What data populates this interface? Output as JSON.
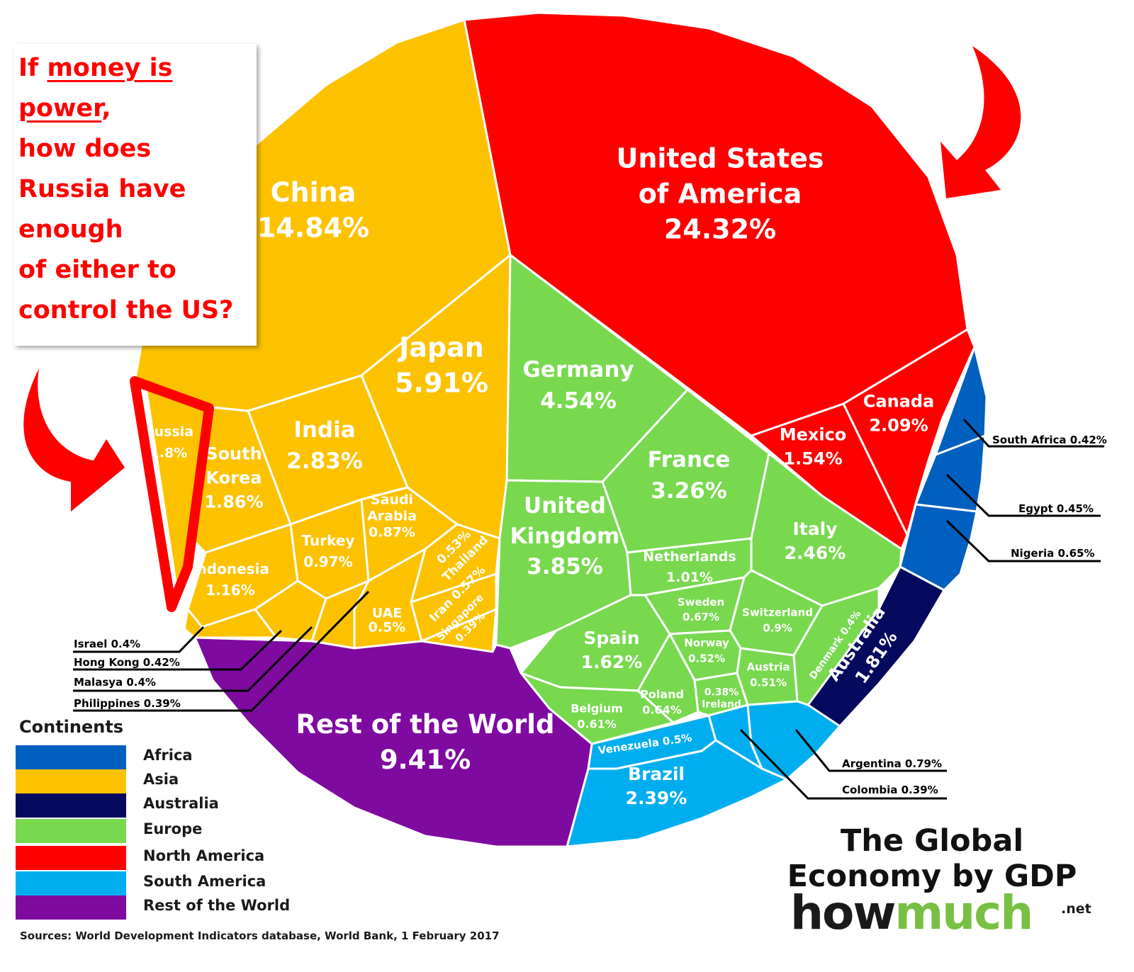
{
  "colors": {
    "Africa": "#0060bf",
    "Asia": "#fcc200",
    "Australia": "#050a5e",
    "Europe": "#78d94f",
    "North America": "#ff0000",
    "South America": "#00aeef",
    "Rest of the World": "#7e0aa0",
    "annotation_red": "#ff0000"
  },
  "quote": {
    "line1_prefix": "If ",
    "line1_underlined": "money is",
    "line2_underlined": "power",
    "line2_suffix": ",",
    "line3": "how does",
    "line4": "Russia have",
    "line5": "enough",
    "line6": "of either to",
    "line7": "control the US?"
  },
  "legend": {
    "title": "Continents",
    "items": [
      {
        "label": "Africa",
        "color": "#0060bf"
      },
      {
        "label": "Asia",
        "color": "#fcc200"
      },
      {
        "label": "Australia",
        "color": "#050a5e"
      },
      {
        "label": "Europe",
        "color": "#78d94f"
      },
      {
        "label": "North America",
        "color": "#ff0000"
      },
      {
        "label": "South America",
        "color": "#00aeef"
      },
      {
        "label": "Rest of the World",
        "color": "#7e0aa0"
      }
    ]
  },
  "sources": "Sources: World Development Indicators database, World Bank, 1 February 2017",
  "title": {
    "line1": "The Global",
    "line2": "Economy by GDP"
  },
  "brand": {
    "how": "how",
    "much": "much",
    "net": ".net"
  },
  "chart_data": {
    "type": "voronoi treemap",
    "title": "The Global Economy by GDP",
    "unit": "% of world GDP",
    "series": [
      {
        "name": "United States of America",
        "continent": "North America",
        "value": 24.32
      },
      {
        "name": "China",
        "continent": "Asia",
        "value": 14.84
      },
      {
        "name": "Rest of the World",
        "continent": "Rest of the World",
        "value": 9.41
      },
      {
        "name": "Japan",
        "continent": "Asia",
        "value": 5.91
      },
      {
        "name": "Germany",
        "continent": "Europe",
        "value": 4.54
      },
      {
        "name": "United Kingdom",
        "continent": "Europe",
        "value": 3.85
      },
      {
        "name": "France",
        "continent": "Europe",
        "value": 3.26
      },
      {
        "name": "India",
        "continent": "Asia",
        "value": 2.83
      },
      {
        "name": "Italy",
        "continent": "Europe",
        "value": 2.46
      },
      {
        "name": "Brazil",
        "continent": "South America",
        "value": 2.39
      },
      {
        "name": "Canada",
        "continent": "North America",
        "value": 2.09
      },
      {
        "name": "South Korea",
        "continent": "Asia",
        "value": 1.86
      },
      {
        "name": "Australia",
        "continent": "Australia",
        "value": 1.81
      },
      {
        "name": "Russia",
        "continent": "Asia",
        "value": 1.8
      },
      {
        "name": "Spain",
        "continent": "Europe",
        "value": 1.62
      },
      {
        "name": "Mexico",
        "continent": "North America",
        "value": 1.54
      },
      {
        "name": "Indonesia",
        "continent": "Asia",
        "value": 1.16
      },
      {
        "name": "Netherlands",
        "continent": "Europe",
        "value": 1.01
      },
      {
        "name": "Turkey",
        "continent": "Asia",
        "value": 0.97
      },
      {
        "name": "Switzerland",
        "continent": "Europe",
        "value": 0.9
      },
      {
        "name": "Saudi Arabia",
        "continent": "Asia",
        "value": 0.87
      },
      {
        "name": "Argentina",
        "continent": "South America",
        "value": 0.79
      },
      {
        "name": "Sweden",
        "continent": "Europe",
        "value": 0.67
      },
      {
        "name": "Nigeria",
        "continent": "Africa",
        "value": 0.65
      },
      {
        "name": "Poland",
        "continent": "Europe",
        "value": 0.64
      },
      {
        "name": "Belgium",
        "continent": "Europe",
        "value": 0.61
      },
      {
        "name": "Iran",
        "continent": "Asia",
        "value": 0.57
      },
      {
        "name": "Thailand",
        "continent": "Asia",
        "value": 0.53
      },
      {
        "name": "Norway",
        "continent": "Europe",
        "value": 0.52
      },
      {
        "name": "Austria",
        "continent": "Europe",
        "value": 0.51
      },
      {
        "name": "UAE",
        "continent": "Asia",
        "value": 0.5
      },
      {
        "name": "Venezuela",
        "continent": "South America",
        "value": 0.5
      },
      {
        "name": "Egypt",
        "continent": "Africa",
        "value": 0.45
      },
      {
        "name": "South Africa",
        "continent": "Africa",
        "value": 0.42
      },
      {
        "name": "Hong Kong",
        "continent": "Asia",
        "value": 0.42
      },
      {
        "name": "Israel",
        "continent": "Asia",
        "value": 0.4
      },
      {
        "name": "Denmark",
        "continent": "Europe",
        "value": 0.4
      },
      {
        "name": "Malasya",
        "continent": "Asia",
        "value": 0.4
      },
      {
        "name": "Singapore",
        "continent": "Asia",
        "value": 0.39
      },
      {
        "name": "Philippines",
        "continent": "Asia",
        "value": 0.39
      },
      {
        "name": "Colombia",
        "continent": "South America",
        "value": 0.39
      },
      {
        "name": "Ireland",
        "continent": "Europe",
        "value": 0.38
      }
    ],
    "cell_labels": [
      {
        "lines": [
          "United States",
          "of America",
          "24.32%"
        ]
      },
      {
        "lines": [
          "China",
          "14.84%"
        ]
      },
      {
        "lines": [
          "Japan",
          "5.91%"
        ]
      },
      {
        "lines": [
          "Germany",
          "4.54%"
        ]
      },
      {
        "lines": [
          "France",
          "3.26%"
        ]
      },
      {
        "lines": [
          "United",
          "Kingdom",
          "3.85%"
        ]
      },
      {
        "lines": [
          "Italy",
          "2.46%"
        ]
      },
      {
        "lines": [
          "Canada",
          "2.09%"
        ]
      },
      {
        "lines": [
          "Mexico",
          "1.54%"
        ]
      },
      {
        "lines": [
          "India",
          "2.83%"
        ]
      },
      {
        "lines": [
          "Russia",
          "1.8%"
        ]
      },
      {
        "lines": [
          "South",
          "Korea",
          "1.86%"
        ]
      },
      {
        "lines": [
          "Indonesia",
          "1.16%"
        ]
      },
      {
        "lines": [
          "Turkey",
          "0.97%"
        ]
      },
      {
        "lines": [
          "Saudi",
          "Arabia",
          "0.87%"
        ]
      },
      {
        "lines": [
          "0.53%",
          "Thailand"
        ]
      },
      {
        "lines": [
          "Iran 0.57%"
        ]
      },
      {
        "lines": [
          "Singapore",
          "0.39%"
        ]
      },
      {
        "lines": [
          "UAE",
          "0.5%"
        ]
      },
      {
        "lines": [
          "Netherlands",
          "1.01%"
        ]
      },
      {
        "lines": [
          "Sweden",
          "0.67%"
        ]
      },
      {
        "lines": [
          "Switzerland",
          "0.9%"
        ]
      },
      {
        "lines": [
          "Spain",
          "1.62%"
        ]
      },
      {
        "lines": [
          "Norway",
          "0.52%"
        ]
      },
      {
        "lines": [
          "Austria",
          "0.51%"
        ]
      },
      {
        "lines": [
          "Poland",
          "0.64%"
        ]
      },
      {
        "lines": [
          "0.38%",
          "Ireland"
        ]
      },
      {
        "lines": [
          "Belgium",
          "0.61%"
        ]
      },
      {
        "lines": [
          "Denmark 0.4%"
        ]
      },
      {
        "lines": [
          "Australia",
          "1.81%"
        ]
      },
      {
        "lines": [
          "Venezuela 0.5%"
        ]
      },
      {
        "lines": [
          "Brazil",
          "2.39%"
        ]
      },
      {
        "lines": [
          "Rest of the World",
          "9.41%"
        ]
      }
    ],
    "callouts": [
      {
        "text": "South Africa 0.42%"
      },
      {
        "text": "Egypt 0.45%"
      },
      {
        "text": "Nigeria 0.65%"
      },
      {
        "text": "Israel 0.4%"
      },
      {
        "text": "Hong Kong 0.42%"
      },
      {
        "text": "Malasya 0.4%"
      },
      {
        "text": "Philippines 0.39%"
      },
      {
        "text": "Argentina 0.79%"
      },
      {
        "text": "Colombia 0.39%"
      }
    ]
  }
}
